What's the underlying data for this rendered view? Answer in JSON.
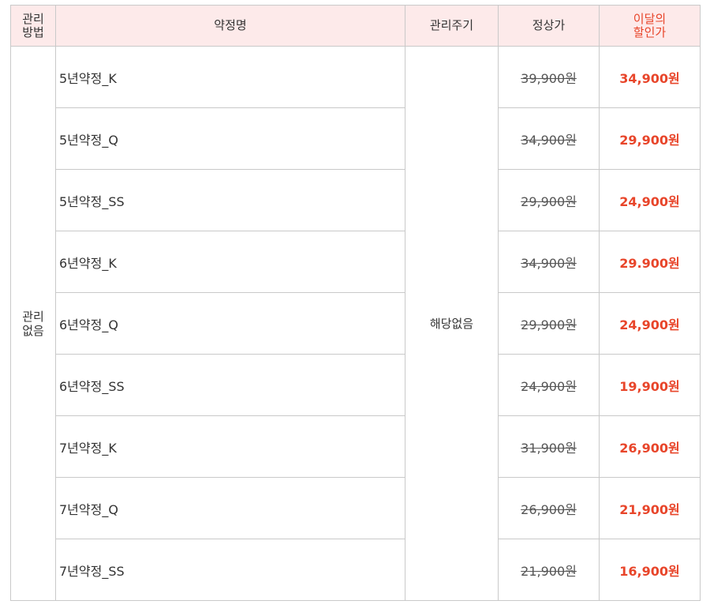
{
  "header": {
    "method": "관리\n방법",
    "name": "약정명",
    "cycle": "관리주기",
    "regular_price": "정상가",
    "discount_price": "이달의\n할인가"
  },
  "management_method": "관리\n없음",
  "management_cycle": "해당없음",
  "rows": [
    {
      "name": "5년약정_K",
      "regular": "39,900원",
      "sale": "34,900원"
    },
    {
      "name": "5년약정_Q",
      "regular": "34,900원",
      "sale": "29,900원"
    },
    {
      "name": "5년약정_SS",
      "regular": "29,900원",
      "sale": "24,900원"
    },
    {
      "name": "6년약정_K",
      "regular": "34,900원",
      "sale": "29.900원"
    },
    {
      "name": "6년약정_Q",
      "regular": "29,900원",
      "sale": "24,900원"
    },
    {
      "name": "6년약정_SS",
      "regular": "24,900원",
      "sale": "19,900원"
    },
    {
      "name": "7년약정_K",
      "regular": "31,900원",
      "sale": "26,900원"
    },
    {
      "name": "7년약정_Q",
      "regular": "26,900원",
      "sale": "21,900원"
    },
    {
      "name": "7년약정_SS",
      "regular": "21,900원",
      "sale": "16,900원"
    }
  ],
  "colors": {
    "header_bg": "#fdeaea",
    "discount": "#e8452a",
    "border": "#c9c9c9"
  }
}
